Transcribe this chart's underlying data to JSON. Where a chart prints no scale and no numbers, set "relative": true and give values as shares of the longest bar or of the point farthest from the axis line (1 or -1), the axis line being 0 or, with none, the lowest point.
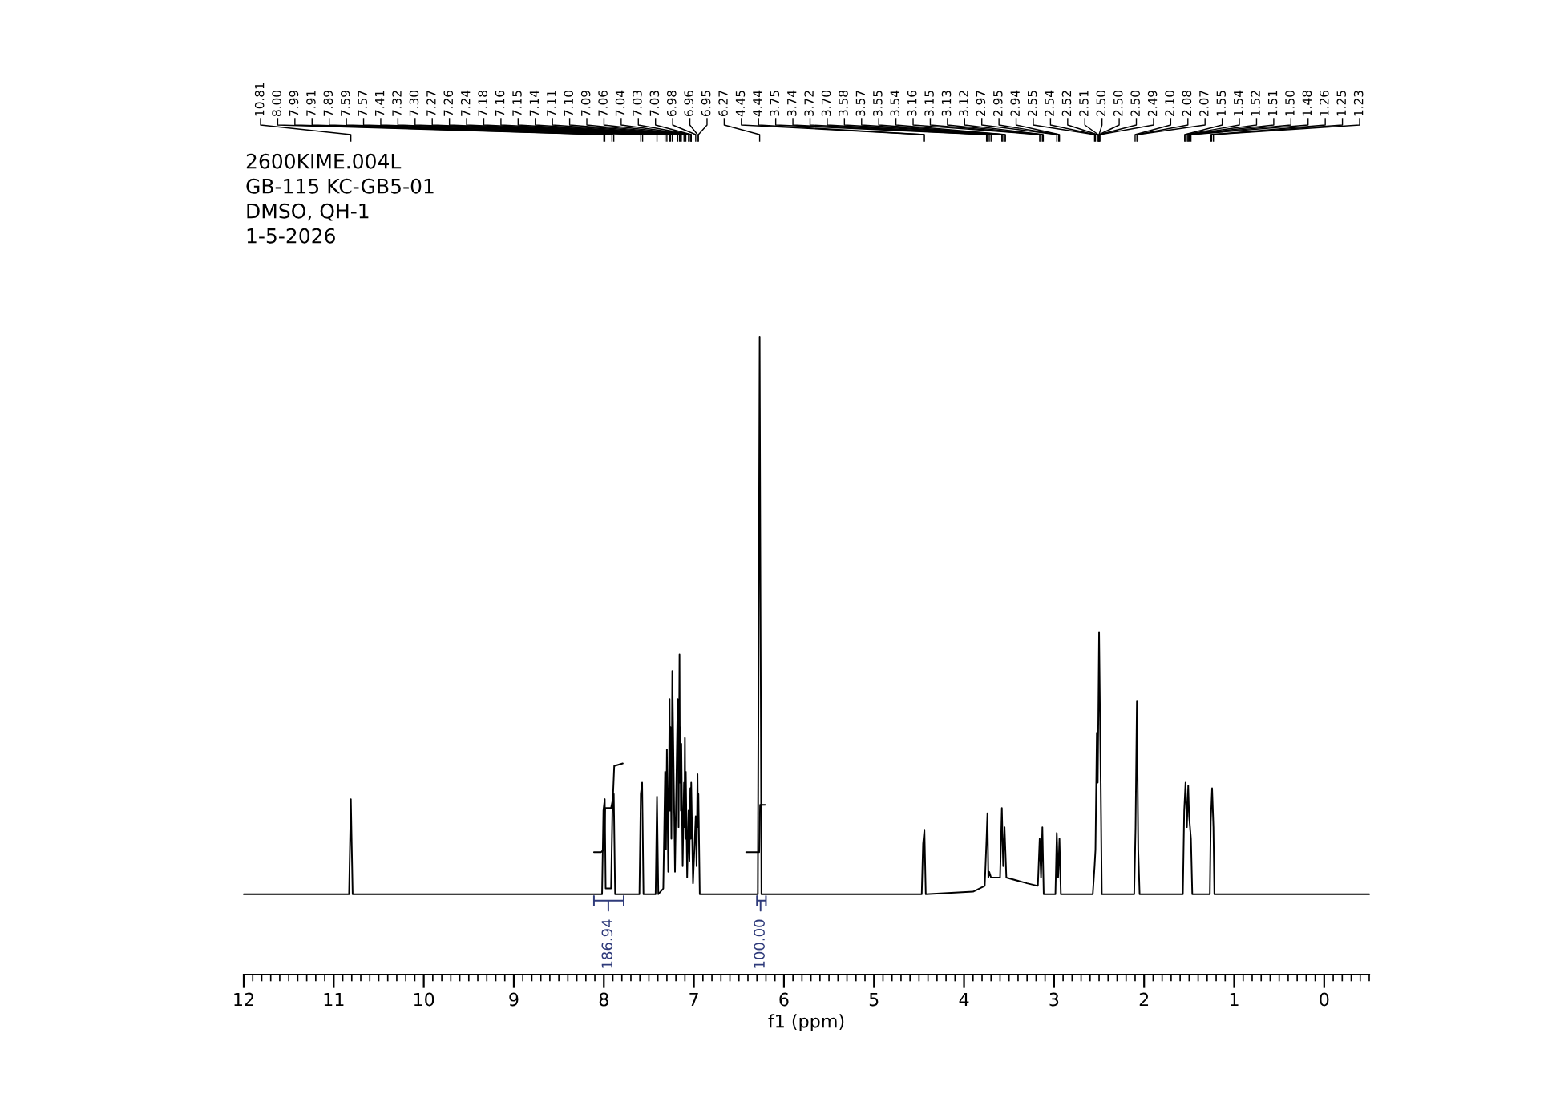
{
  "chart_data": {
    "type": "line",
    "title": "2600KIME.004L",
    "xlabel": "f1 (ppm)",
    "relative": true,
    "xlim": [
      12,
      -0.5
    ],
    "xticks": [
      12,
      11,
      10,
      9,
      8,
      7,
      6,
      5,
      4,
      3,
      2,
      1,
      0
    ],
    "series": [
      {
        "color": "#000000",
        "x": [
          12.0,
          11.0,
          10.83,
          10.81,
          10.79,
          8.02,
          8.005,
          7.99,
          7.98,
          7.92,
          7.905,
          7.89,
          7.875,
          7.605,
          7.59,
          7.575,
          7.56,
          7.425,
          7.41,
          7.395,
          7.34,
          7.32,
          7.31,
          7.3,
          7.285,
          7.27,
          7.265,
          7.26,
          7.25,
          7.24,
          7.21,
          7.18,
          7.17,
          7.16,
          7.155,
          7.15,
          7.145,
          7.14,
          7.125,
          7.11,
          7.105,
          7.1,
          7.095,
          7.09,
          7.075,
          7.06,
          7.05,
          7.04,
          7.035,
          7.03,
          7.01,
          6.98,
          6.97,
          6.96,
          6.955,
          6.95,
          6.935,
          6.29,
          6.27,
          6.25,
          4.47,
          4.455,
          4.44,
          4.425,
          3.9,
          3.77,
          3.75,
          3.74,
          3.73,
          3.72,
          3.7,
          3.6,
          3.58,
          3.565,
          3.55,
          3.53,
          3.3,
          3.18,
          3.16,
          3.145,
          3.13,
          3.115,
          2.985,
          2.97,
          2.955,
          2.94,
          2.925,
          2.57,
          2.55,
          2.54,
          2.525,
          2.515,
          2.5,
          2.485,
          2.47,
          2.11,
          2.095,
          2.08,
          2.065,
          2.05,
          1.57,
          1.555,
          1.54,
          1.525,
          1.51,
          1.5,
          1.48,
          1.465,
          1.27,
          1.26,
          1.245,
          1.23,
          1.22,
          -0.5
        ],
        "values": [
          0.126,
          0.126,
          0.126,
          0.275,
          0.126,
          0.126,
          0.257,
          0.275,
          0.135,
          0.135,
          0.257,
          0.283,
          0.126,
          0.126,
          0.283,
          0.301,
          0.126,
          0.126,
          0.279,
          0.126,
          0.135,
          0.318,
          0.196,
          0.353,
          0.161,
          0.432,
          0.257,
          0.388,
          0.213,
          0.476,
          0.161,
          0.432,
          0.231,
          0.502,
          0.301,
          0.388,
          0.257,
          0.362,
          0.17,
          0.301,
          0.231,
          0.371,
          0.213,
          0.318,
          0.152,
          0.257,
          0.178,
          0.292,
          0.213,
          0.301,
          0.143,
          0.248,
          0.17,
          0.314,
          0.231,
          0.283,
          0.126,
          0.126,
          1.0,
          0.126,
          0.126,
          0.205,
          0.227,
          0.126,
          0.13,
          0.139,
          0.213,
          0.253,
          0.152,
          0.161,
          0.152,
          0.152,
          0.261,
          0.17,
          0.231,
          0.152,
          0.143,
          0.139,
          0.213,
          0.152,
          0.231,
          0.126,
          0.126,
          0.222,
          0.152,
          0.213,
          0.126,
          0.126,
          0.17,
          0.196,
          0.379,
          0.301,
          0.537,
          0.345,
          0.126,
          0.126,
          0.231,
          0.428,
          0.196,
          0.126,
          0.126,
          0.257,
          0.301,
          0.231,
          0.296,
          0.248,
          0.213,
          0.126,
          0.126,
          0.24,
          0.292,
          0.231,
          0.126,
          0.126
        ]
      },
      {
        "color": "#000000",
        "x": [
          8.11,
          8.03,
          8.0,
          7.985,
          7.92,
          7.9,
          7.885,
          7.79
        ],
        "values": [
          0.192,
          0.192,
          0.196,
          0.261,
          0.261,
          0.275,
          0.327,
          0.331
        ]
      },
      {
        "color": "#000000",
        "x": [
          6.42,
          6.275,
          6.265,
          6.21
        ],
        "values": [
          0.192,
          0.192,
          0.266,
          0.266
        ]
      },
      {
        "color": "#2e3a7a",
        "x": [
          8.11,
          8.11,
          8.11,
          7.95,
          7.95,
          7.95,
          7.78,
          7.78,
          7.78
        ],
        "values": [
          0.123,
          0.108,
          0.116,
          0.116,
          0.1,
          0.116,
          0.116,
          0.123,
          0.108
        ]
      },
      {
        "color": "#2e3a7a",
        "x": [
          6.3,
          6.3,
          6.3,
          6.26,
          6.26,
          6.26,
          6.2,
          6.2,
          6.2
        ],
        "values": [
          0.123,
          0.108,
          0.116,
          0.116,
          0.1,
          0.116,
          0.116,
          0.123,
          0.108
        ]
      }
    ],
    "annotations": [
      "GB-115 KC-GB5-01",
      "DMSO, QH-1",
      "1-5-2026",
      {
        "text": "186.94",
        "x": 7.95,
        "y": 0.1
      },
      {
        "text": "100.00",
        "x": 6.26,
        "y": 0.1
      },
      {
        "text": "10.81",
        "x": 10.81
      },
      {
        "text": "8.00",
        "x": 8.0
      },
      {
        "text": "7.99",
        "x": 7.99
      },
      {
        "text": "7.91",
        "x": 7.91
      },
      {
        "text": "7.89",
        "x": 7.89
      },
      {
        "text": "7.59",
        "x": 7.59
      },
      {
        "text": "7.57",
        "x": 7.57
      },
      {
        "text": "7.41",
        "x": 7.41
      },
      {
        "text": "7.32",
        "x": 7.32
      },
      {
        "text": "7.30",
        "x": 7.3
      },
      {
        "text": "7.27",
        "x": 7.27
      },
      {
        "text": "7.26",
        "x": 7.26
      },
      {
        "text": "7.24",
        "x": 7.24
      },
      {
        "text": "7.18",
        "x": 7.18
      },
      {
        "text": "7.16",
        "x": 7.16
      },
      {
        "text": "7.15",
        "x": 7.15
      },
      {
        "text": "7.14",
        "x": 7.14
      },
      {
        "text": "7.11",
        "x": 7.11
      },
      {
        "text": "7.10",
        "x": 7.1
      },
      {
        "text": "7.09",
        "x": 7.09
      },
      {
        "text": "7.06",
        "x": 7.06
      },
      {
        "text": "7.04",
        "x": 7.04
      },
      {
        "text": "7.03",
        "x": 7.03
      },
      {
        "text": "7.03",
        "x": 7.03
      },
      {
        "text": "6.98",
        "x": 6.98
      },
      {
        "text": "6.96",
        "x": 6.96
      },
      {
        "text": "6.95",
        "x": 6.95
      },
      {
        "text": "6.27",
        "x": 6.27
      },
      {
        "text": "4.45",
        "x": 4.45
      },
      {
        "text": "4.44",
        "x": 4.44
      },
      {
        "text": "3.75",
        "x": 3.75
      },
      {
        "text": "3.74",
        "x": 3.74
      },
      {
        "text": "3.72",
        "x": 3.72
      },
      {
        "text": "3.70",
        "x": 3.7
      },
      {
        "text": "3.58",
        "x": 3.58
      },
      {
        "text": "3.57",
        "x": 3.57
      },
      {
        "text": "3.55",
        "x": 3.55
      },
      {
        "text": "3.54",
        "x": 3.54
      },
      {
        "text": "3.16",
        "x": 3.16
      },
      {
        "text": "3.15",
        "x": 3.15
      },
      {
        "text": "3.13",
        "x": 3.13
      },
      {
        "text": "3.12",
        "x": 3.12
      },
      {
        "text": "2.97",
        "x": 2.97
      },
      {
        "text": "2.95",
        "x": 2.95
      },
      {
        "text": "2.94",
        "x": 2.94
      },
      {
        "text": "2.55",
        "x": 2.55
      },
      {
        "text": "2.54",
        "x": 2.54
      },
      {
        "text": "2.52",
        "x": 2.52
      },
      {
        "text": "2.51",
        "x": 2.51
      },
      {
        "text": "2.50",
        "x": 2.5
      },
      {
        "text": "2.50",
        "x": 2.5
      },
      {
        "text": "2.50",
        "x": 2.5
      },
      {
        "text": "2.49",
        "x": 2.49
      },
      {
        "text": "2.10",
        "x": 2.1
      },
      {
        "text": "2.08",
        "x": 2.08
      },
      {
        "text": "2.07",
        "x": 2.07
      },
      {
        "text": "1.55",
        "x": 1.55
      },
      {
        "text": "1.54",
        "x": 1.54
      },
      {
        "text": "1.52",
        "x": 1.52
      },
      {
        "text": "1.51",
        "x": 1.51
      },
      {
        "text": "1.50",
        "x": 1.5
      },
      {
        "text": "1.48",
        "x": 1.48
      },
      {
        "text": "1.26",
        "x": 1.26
      },
      {
        "text": "1.25",
        "x": 1.25
      },
      {
        "text": "1.23",
        "x": 1.23
      }
    ]
  }
}
